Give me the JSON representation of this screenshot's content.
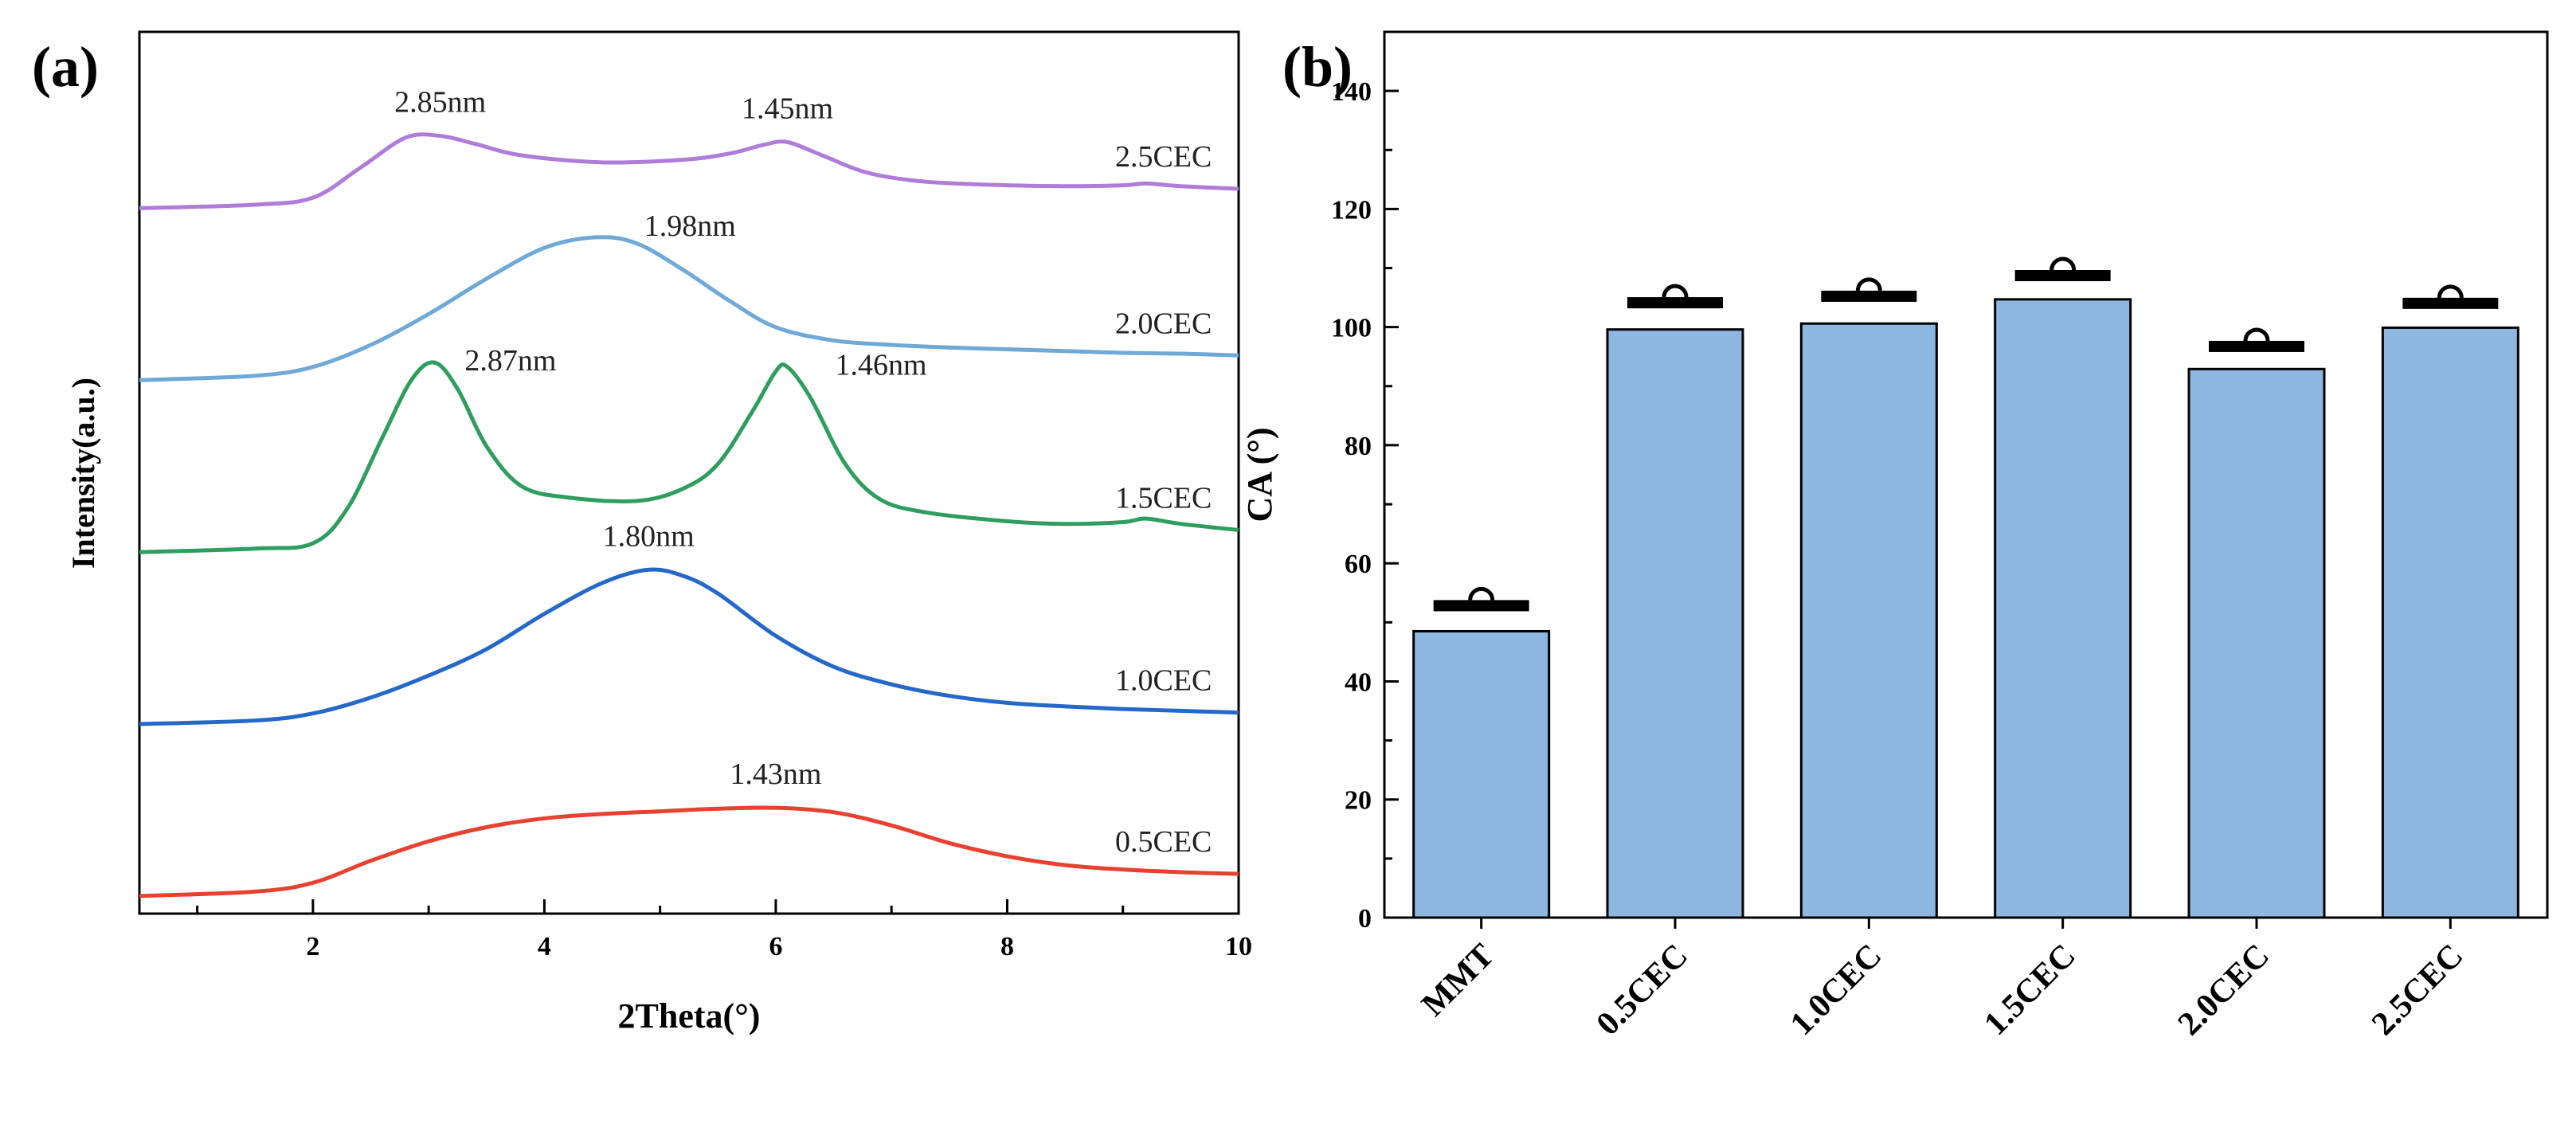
{
  "panels": {
    "a_label": "(a)",
    "b_label": "(b)"
  },
  "colors": {
    "axis": "#000000",
    "bar_fill": "#8db7e1",
    "bar_edge": "#000000",
    "error_bar": "#000000"
  },
  "chart_data": [
    {
      "type": "line",
      "title": "",
      "xlabel": "2Theta(°)",
      "ylabel": "Intensity(a.u.)",
      "xlim": [
        0.5,
        10
      ],
      "ylim": [
        0,
        1
      ],
      "xticks": [
        2,
        4,
        6,
        8,
        10
      ],
      "y_ticks_shown": false,
      "series": [
        {
          "name": "0.5CEC",
          "color": "#e8412f",
          "offset": 0.02,
          "x": [
            0.5,
            1.5,
            2.0,
            2.5,
            3.0,
            3.5,
            4.0,
            4.5,
            5.0,
            5.5,
            6.0,
            6.5,
            7.0,
            7.5,
            8.0,
            8.5,
            9.0,
            9.5,
            10.0
          ],
          "y": [
            0.0,
            0.005,
            0.015,
            0.04,
            0.062,
            0.078,
            0.088,
            0.093,
            0.096,
            0.099,
            0.1,
            0.095,
            0.08,
            0.06,
            0.045,
            0.035,
            0.03,
            0.027,
            0.025
          ],
          "annotation": {
            "text": "1.43nm",
            "x": 6.0
          }
        },
        {
          "name": "1.0CEC",
          "color": "#2468c9",
          "offset": 0.215,
          "x": [
            0.5,
            1.5,
            2.0,
            2.5,
            3.0,
            3.5,
            4.0,
            4.5,
            4.9,
            5.2,
            5.5,
            6.0,
            6.5,
            7.0,
            7.5,
            8.0,
            8.5,
            9.0,
            9.5,
            10.0
          ],
          "y": [
            0.0,
            0.004,
            0.012,
            0.03,
            0.055,
            0.085,
            0.125,
            0.16,
            0.175,
            0.168,
            0.148,
            0.1,
            0.065,
            0.045,
            0.032,
            0.024,
            0.02,
            0.017,
            0.015,
            0.013
          ],
          "annotation": {
            "text": "1.80nm",
            "x": 4.9
          }
        },
        {
          "name": "1.5CEC",
          "color": "#2e9e5e",
          "offset": 0.41,
          "x": [
            0.5,
            1.5,
            2.0,
            2.3,
            2.6,
            2.85,
            3.05,
            3.25,
            3.5,
            3.8,
            4.2,
            4.8,
            5.2,
            5.5,
            5.8,
            6.0,
            6.1,
            6.3,
            6.6,
            6.9,
            7.3,
            8.0,
            8.5,
            9.0,
            9.2,
            9.5,
            10.0
          ],
          "y": [
            0.0,
            0.004,
            0.01,
            0.05,
            0.13,
            0.195,
            0.215,
            0.185,
            0.12,
            0.075,
            0.062,
            0.058,
            0.072,
            0.1,
            0.16,
            0.205,
            0.21,
            0.175,
            0.1,
            0.06,
            0.045,
            0.035,
            0.032,
            0.034,
            0.038,
            0.032,
            0.025
          ],
          "annotation": [
            {
              "text": "2.87nm",
              "x": 3.05
            },
            {
              "text": "1.46nm",
              "x": 6.1
            }
          ]
        },
        {
          "name": "2.0CEC",
          "color": "#6ea9d8",
          "offset": 0.605,
          "x": [
            0.5,
            1.5,
            2.0,
            2.5,
            3.0,
            3.5,
            4.0,
            4.45,
            4.8,
            5.2,
            5.6,
            6.0,
            6.5,
            7.0,
            7.5,
            8.0,
            8.5,
            9.0,
            9.5,
            10.0
          ],
          "y": [
            0.0,
            0.005,
            0.015,
            0.04,
            0.075,
            0.115,
            0.15,
            0.162,
            0.155,
            0.125,
            0.09,
            0.06,
            0.045,
            0.04,
            0.037,
            0.035,
            0.033,
            0.031,
            0.03,
            0.028
          ],
          "annotation": {
            "text": "1.98nm",
            "x": 4.45
          }
        },
        {
          "name": "2.5CEC",
          "color": "#b07cd9",
          "offset": 0.8,
          "x": [
            0.5,
            1.5,
            2.0,
            2.4,
            2.8,
            3.1,
            3.4,
            3.8,
            4.5,
            5.2,
            5.6,
            5.9,
            6.1,
            6.4,
            6.8,
            7.3,
            8.0,
            8.5,
            9.0,
            9.2,
            9.5,
            10.0
          ],
          "y": [
            0.0,
            0.004,
            0.012,
            0.045,
            0.08,
            0.082,
            0.073,
            0.06,
            0.052,
            0.055,
            0.062,
            0.072,
            0.075,
            0.06,
            0.04,
            0.03,
            0.026,
            0.025,
            0.026,
            0.028,
            0.025,
            0.022
          ],
          "annotation": [
            {
              "text": "2.85nm",
              "x": 3.1
            },
            {
              "text": "1.45nm",
              "x": 6.1
            }
          ]
        }
      ]
    },
    {
      "type": "bar",
      "title": "",
      "xlabel": "",
      "ylabel": "CA (°)",
      "ylim": [
        0,
        150
      ],
      "yticks": [
        0,
        20,
        40,
        60,
        80,
        100,
        120,
        140
      ],
      "categories": [
        "MMT",
        "0.5CEC",
        "1.0CEC",
        "1.5CEC",
        "2.0CEC",
        "2.5CEC"
      ],
      "values": [
        48.5,
        99.6,
        100.6,
        104.7,
        92.9,
        99.9
      ],
      "error_bar_level": [
        53.5,
        104.8,
        105.9,
        109.4,
        97.4,
        104.7
      ]
    }
  ]
}
